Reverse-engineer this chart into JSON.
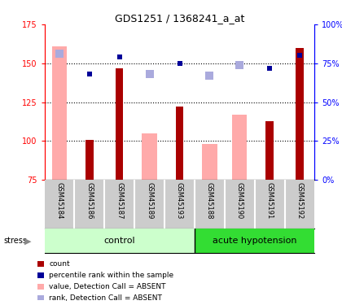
{
  "title": "GDS1251 / 1368241_a_at",
  "samples": [
    "GSM45184",
    "GSM45186",
    "GSM45187",
    "GSM45189",
    "GSM45193",
    "GSM45188",
    "GSM45190",
    "GSM45191",
    "GSM45192"
  ],
  "groups": [
    {
      "name": "control",
      "start": 0,
      "end": 5,
      "color": "#ccffcc"
    },
    {
      "name": "acute hypotension",
      "start": 5,
      "end": 9,
      "color": "#33dd33"
    }
  ],
  "dark_red_bars": [
    null,
    101,
    147,
    null,
    122,
    null,
    null,
    113,
    160
  ],
  "pink_bars": [
    161,
    null,
    null,
    105,
    null,
    98,
    117,
    null,
    null
  ],
  "blue_squares": [
    null,
    143,
    154,
    null,
    150,
    null,
    null,
    147,
    155
  ],
  "lavender_squares": [
    156,
    null,
    null,
    143,
    null,
    142,
    149,
    null,
    null
  ],
  "ylim_left": [
    75,
    175
  ],
  "ylim_right": [
    0,
    100
  ],
  "yticks_left": [
    75,
    100,
    125,
    150,
    175
  ],
  "yticks_right": [
    0,
    25,
    50,
    75,
    100
  ],
  "ytick_labels_right": [
    "0%",
    "25%",
    "50%",
    "75%",
    "100%"
  ],
  "dark_red_color": "#aa0000",
  "pink_color": "#ffaaaa",
  "blue_color": "#000099",
  "lavender_color": "#aaaadd",
  "bg_sample_label": "#cccccc",
  "legend_items": [
    {
      "label": "count",
      "color": "#aa0000"
    },
    {
      "label": "percentile rank within the sample",
      "color": "#000099"
    },
    {
      "label": "value, Detection Call = ABSENT",
      "color": "#ffaaaa"
    },
    {
      "label": "rank, Detection Call = ABSENT",
      "color": "#aaaadd"
    }
  ]
}
